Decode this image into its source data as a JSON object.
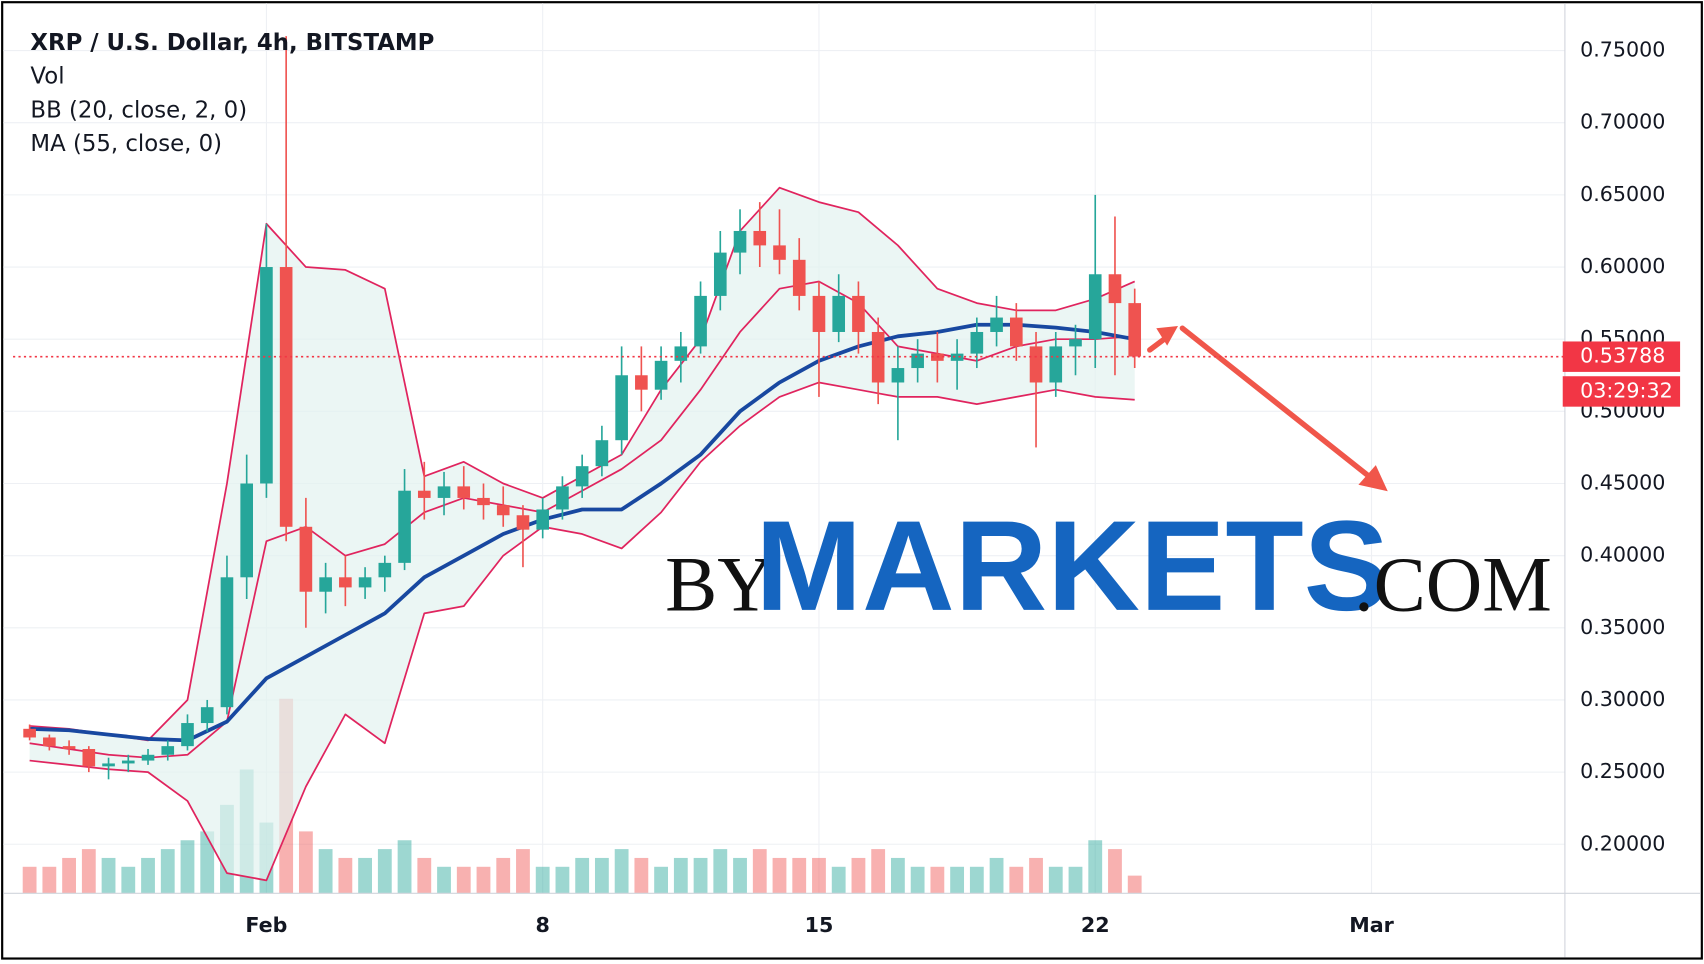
{
  "chart_data": {
    "type": "candlestick",
    "title": "XRP / U.S. Dollar, 4h, BITSTAMP",
    "indicators": [
      "Vol",
      "BB (20, close, 2, 0)",
      "MA (55, close, 0)"
    ],
    "up_color": "#26a69a",
    "down_color": "#ef5350",
    "x": [
      -5,
      -4.5,
      -4,
      -3.5,
      -3,
      -2.5,
      -2,
      -1.5,
      -1,
      -0.5,
      0,
      0.5,
      1,
      1.5,
      2,
      2.5,
      3,
      3.5,
      4,
      4.5,
      5,
      5.5,
      6,
      6.5,
      7,
      7.5,
      8,
      8.5,
      9,
      9.5,
      10,
      10.5,
      11,
      11.5,
      12,
      12.5,
      13,
      13.5,
      14,
      14.5,
      15,
      15.5,
      16,
      16.5,
      17,
      17.5,
      18,
      18.5,
      19,
      19.5,
      20,
      20.5,
      21,
      21.5,
      22,
      22.5,
      23
    ],
    "open": [
      0.28,
      0.274,
      0.268,
      0.266,
      0.254,
      0.256,
      0.258,
      0.262,
      0.268,
      0.284,
      0.295,
      0.385,
      0.45,
      0.6,
      0.42,
      0.375,
      0.385,
      0.378,
      0.385,
      0.395,
      0.445,
      0.44,
      0.448,
      0.44,
      0.435,
      0.428,
      0.418,
      0.432,
      0.448,
      0.462,
      0.48,
      0.525,
      0.515,
      0.535,
      0.545,
      0.58,
      0.61,
      0.625,
      0.615,
      0.605,
      0.58,
      0.555,
      0.58,
      0.555,
      0.52,
      0.53,
      0.54,
      0.535,
      0.54,
      0.555,
      0.565,
      0.545,
      0.52,
      0.545,
      0.55,
      0.595,
      0.575
    ],
    "high": [
      0.283,
      0.276,
      0.272,
      0.268,
      0.26,
      0.262,
      0.266,
      0.272,
      0.29,
      0.3,
      0.4,
      0.47,
      0.63,
      0.76,
      0.44,
      0.395,
      0.4,
      0.392,
      0.4,
      0.46,
      0.465,
      0.458,
      0.462,
      0.45,
      0.448,
      0.435,
      0.44,
      0.455,
      0.47,
      0.49,
      0.545,
      0.545,
      0.545,
      0.555,
      0.59,
      0.625,
      0.64,
      0.645,
      0.64,
      0.62,
      0.59,
      0.595,
      0.59,
      0.565,
      0.545,
      0.55,
      0.555,
      0.55,
      0.565,
      0.58,
      0.575,
      0.555,
      0.555,
      0.56,
      0.65,
      0.635,
      0.585
    ],
    "low": [
      0.272,
      0.265,
      0.262,
      0.25,
      0.245,
      0.25,
      0.255,
      0.258,
      0.265,
      0.278,
      0.29,
      0.37,
      0.44,
      0.41,
      0.35,
      0.36,
      0.365,
      0.37,
      0.375,
      0.39,
      0.425,
      0.428,
      0.432,
      0.425,
      0.42,
      0.392,
      0.412,
      0.425,
      0.44,
      0.455,
      0.47,
      0.5,
      0.508,
      0.52,
      0.54,
      0.57,
      0.595,
      0.6,
      0.595,
      0.57,
      0.51,
      0.548,
      0.54,
      0.505,
      0.48,
      0.52,
      0.52,
      0.515,
      0.53,
      0.545,
      0.535,
      0.475,
      0.51,
      0.525,
      0.53,
      0.525,
      0.53
    ],
    "close": [
      0.274,
      0.268,
      0.266,
      0.254,
      0.256,
      0.258,
      0.262,
      0.268,
      0.284,
      0.295,
      0.385,
      0.45,
      0.6,
      0.42,
      0.375,
      0.385,
      0.378,
      0.385,
      0.395,
      0.445,
      0.44,
      0.448,
      0.44,
      0.435,
      0.428,
      0.418,
      0.432,
      0.448,
      0.462,
      0.48,
      0.525,
      0.515,
      0.535,
      0.545,
      0.58,
      0.61,
      0.625,
      0.615,
      0.605,
      0.58,
      0.555,
      0.58,
      0.555,
      0.52,
      0.53,
      0.54,
      0.535,
      0.54,
      0.555,
      0.565,
      0.545,
      0.52,
      0.545,
      0.55,
      0.595,
      0.575,
      0.538
    ],
    "volume": [
      3,
      3,
      4,
      5,
      4,
      3,
      4,
      5,
      6,
      7,
      10,
      14,
      8,
      22,
      7,
      5,
      4,
      4,
      5,
      6,
      4,
      3,
      3,
      3,
      4,
      5,
      3,
      3,
      4,
      4,
      5,
      4,
      3,
      4,
      4,
      5,
      4,
      5,
      4,
      4,
      4,
      3,
      4,
      5,
      4,
      3,
      3,
      3,
      3,
      4,
      3,
      4,
      3,
      3,
      6,
      5,
      2
    ],
    "line_x": [
      -5,
      -4,
      -3,
      -2,
      -1,
      0,
      1,
      2,
      3,
      4,
      5,
      6,
      7,
      8,
      9,
      10,
      11,
      12,
      13,
      14,
      15,
      16,
      17,
      18,
      19,
      20,
      21,
      22,
      23
    ],
    "bollinger": {
      "color": "#e0245e",
      "fill": "#e3f2ef",
      "upper": [
        0.282,
        0.28,
        0.276,
        0.272,
        0.3,
        0.45,
        0.63,
        0.6,
        0.598,
        0.585,
        0.455,
        0.465,
        0.45,
        0.44,
        0.455,
        0.47,
        0.515,
        0.55,
        0.625,
        0.655,
        0.645,
        0.638,
        0.615,
        0.585,
        0.575,
        0.57,
        0.57,
        0.578,
        0.59
      ],
      "basis": [
        0.27,
        0.266,
        0.262,
        0.26,
        0.262,
        0.285,
        0.41,
        0.42,
        0.4,
        0.408,
        0.43,
        0.44,
        0.435,
        0.43,
        0.445,
        0.46,
        0.48,
        0.515,
        0.555,
        0.585,
        0.59,
        0.575,
        0.545,
        0.54,
        0.535,
        0.545,
        0.55,
        0.55,
        0.552
      ],
      "lower": [
        0.258,
        0.255,
        0.252,
        0.25,
        0.23,
        0.18,
        0.175,
        0.24,
        0.29,
        0.27,
        0.36,
        0.365,
        0.4,
        0.42,
        0.415,
        0.405,
        0.43,
        0.465,
        0.49,
        0.51,
        0.52,
        0.515,
        0.51,
        0.51,
        0.505,
        0.51,
        0.515,
        0.51,
        0.508
      ]
    },
    "ma": {
      "color": "#1848a0",
      "values": [
        0.28,
        0.279,
        0.276,
        0.273,
        0.272,
        0.285,
        0.315,
        0.33,
        0.345,
        0.36,
        0.385,
        0.4,
        0.415,
        0.425,
        0.432,
        0.432,
        0.45,
        0.47,
        0.5,
        0.52,
        0.535,
        0.545,
        0.552,
        0.555,
        0.56,
        0.56,
        0.558,
        0.555,
        0.55
      ]
    },
    "last_price": 0.53788,
    "last_price_color": "#f23645",
    "countdown": "03:29:32",
    "xlim": [
      -5.42,
      33.9
    ],
    "xticks": [
      {
        "value": 1,
        "label": "Feb"
      },
      8,
      15,
      22,
      {
        "value": 29,
        "label": "Mar"
      }
    ],
    "ylim": [
      0.166,
      0.779
    ],
    "yticks": [
      {
        "value": 0.2,
        "label": "0.20000"
      },
      {
        "value": 0.25,
        "label": "0.25000"
      },
      {
        "value": 0.3,
        "label": "0.30000"
      },
      {
        "value": 0.35,
        "label": "0.35000"
      },
      {
        "value": 0.4,
        "label": "0.40000"
      },
      {
        "value": 0.45,
        "label": "0.45000"
      },
      {
        "value": 0.5,
        "label": "0.50000"
      },
      {
        "value": 0.55,
        "label": "0.55000"
      },
      {
        "value": 0.6,
        "label": "0.60000"
      },
      {
        "value": 0.65,
        "label": "0.65000"
      },
      {
        "value": 0.7,
        "label": "0.70000"
      },
      {
        "value": 0.75,
        "label": "0.75000"
      }
    ],
    "y2lim": [
      0,
      100
    ],
    "grid": true,
    "watermark": {
      "prefix": "BY",
      "name": "MARKETS",
      "suffix": ".COM"
    }
  }
}
